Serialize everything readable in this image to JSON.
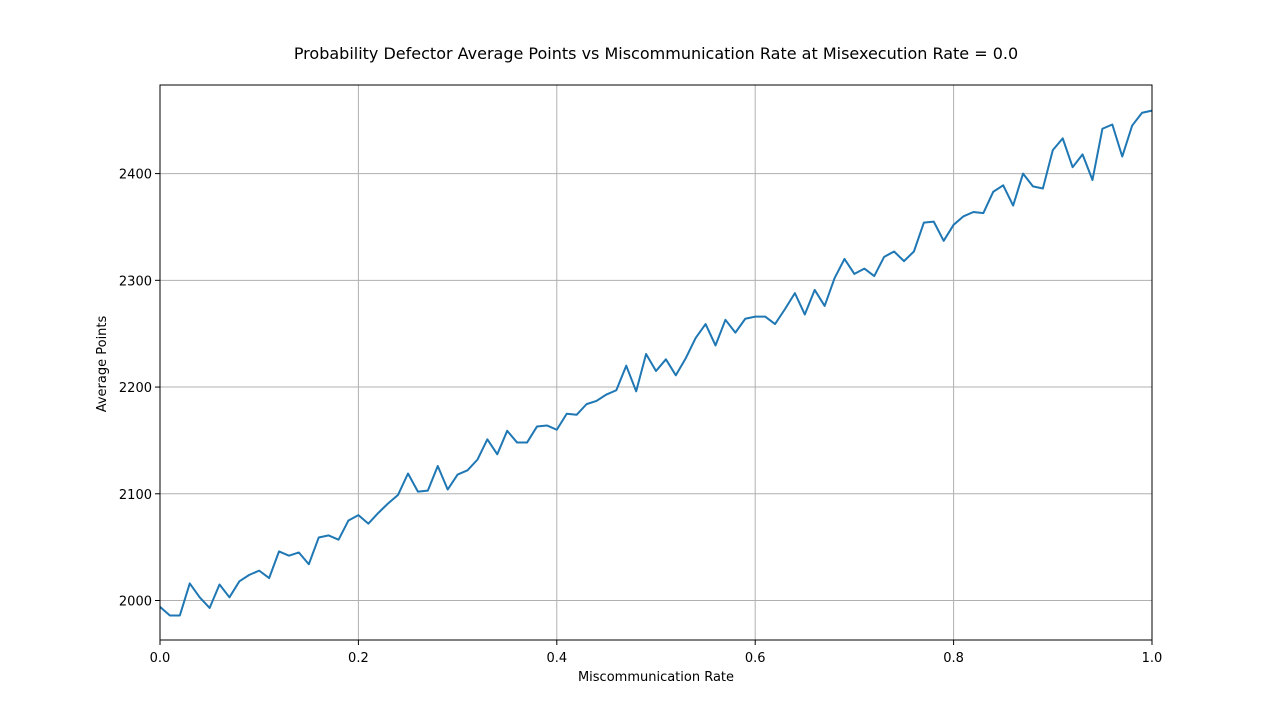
{
  "chart_data": {
    "type": "line",
    "title": "Probability Defector Average Points vs Miscommunication Rate at Misexecution Rate = 0.0",
    "xlabel": "Miscommunication Rate",
    "ylabel": "Average Points",
    "xlim": [
      0.0,
      1.0
    ],
    "ylim": [
      1963,
      2483
    ],
    "xticks": [
      0.0,
      0.2,
      0.4,
      0.6,
      0.8,
      1.0
    ],
    "xtick_labels": [
      "0.0",
      "0.2",
      "0.4",
      "0.6",
      "0.8",
      "1.0"
    ],
    "yticks": [
      2000,
      2100,
      2200,
      2300,
      2400
    ],
    "ytick_labels": [
      "2000",
      "2100",
      "2200",
      "2300",
      "2400"
    ],
    "grid": true,
    "series_color": "#1f77b4",
    "series": [
      {
        "x": [
          0.0,
          0.01,
          0.02,
          0.03,
          0.04,
          0.05,
          0.06,
          0.07,
          0.08,
          0.09,
          0.1,
          0.11,
          0.12,
          0.13,
          0.14,
          0.15,
          0.16,
          0.17,
          0.18,
          0.19,
          0.2,
          0.21,
          0.22,
          0.23,
          0.24,
          0.25,
          0.26,
          0.27,
          0.28,
          0.29,
          0.3,
          0.31,
          0.32,
          0.33,
          0.34,
          0.35,
          0.36,
          0.37,
          0.38,
          0.39,
          0.4,
          0.41,
          0.42,
          0.43,
          0.44,
          0.45,
          0.46,
          0.47,
          0.48,
          0.49,
          0.5,
          0.51,
          0.52,
          0.53,
          0.54,
          0.55,
          0.56,
          0.57,
          0.58,
          0.59,
          0.6,
          0.61,
          0.62,
          0.63,
          0.64,
          0.65,
          0.66,
          0.67,
          0.68,
          0.69,
          0.7,
          0.71,
          0.72,
          0.73,
          0.74,
          0.75,
          0.76,
          0.77,
          0.78,
          0.79,
          0.8,
          0.81,
          0.82,
          0.83,
          0.84,
          0.85,
          0.86,
          0.87,
          0.88,
          0.89,
          0.9,
          0.91,
          0.92,
          0.93,
          0.94,
          0.95,
          0.96,
          0.97,
          0.98,
          0.99,
          1.0
        ],
        "values": [
          1994,
          1986,
          1986,
          2016,
          2003,
          1993,
          2015,
          2003,
          2018,
          2024,
          2028,
          2021,
          2046,
          2042,
          2045,
          2034,
          2059,
          2061,
          2057,
          2075,
          2080,
          2072,
          2082,
          2091,
          2099,
          2119,
          2102,
          2103,
          2126,
          2104,
          2118,
          2122,
          2132,
          2151,
          2137,
          2159,
          2148,
          2148,
          2163,
          2164,
          2160,
          2175,
          2174,
          2184,
          2187,
          2193,
          2197,
          2220,
          2196,
          2231,
          2215,
          2226,
          2211,
          2227,
          2246,
          2259,
          2239,
          2263,
          2251,
          2264,
          2266,
          2266,
          2259,
          2273,
          2288,
          2268,
          2291,
          2276,
          2302,
          2320,
          2306,
          2311,
          2304,
          2322,
          2327,
          2318,
          2327,
          2354,
          2355,
          2337,
          2352,
          2360,
          2364,
          2363,
          2383,
          2389,
          2370,
          2400,
          2388,
          2386,
          2422,
          2433,
          2406,
          2418,
          2394,
          2442,
          2446,
          2416,
          2445,
          2457,
          2459
        ]
      }
    ]
  }
}
